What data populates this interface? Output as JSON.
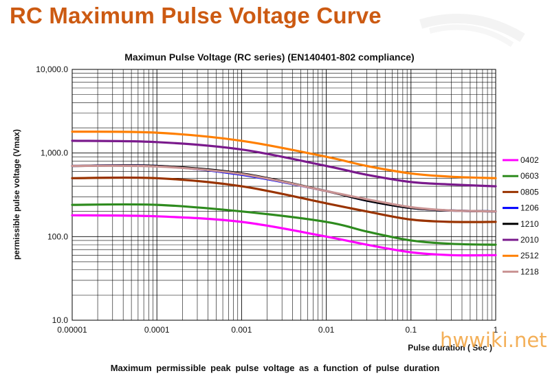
{
  "page": {
    "heading": "RC Maximum Pulse Voltage Curve",
    "caption": "Maximum permissible peak pulse voltage as a function of pulse duration",
    "watermark": "hwwiki.net"
  },
  "colors": {
    "heading": "#cc5a12",
    "grid": "#000000",
    "watermark": "#f2a23c"
  },
  "chart_data": {
    "type": "line",
    "title": "Maximun Pulse Voltage (RC series) (EN140401-802 compliance)",
    "xlabel": "Pulse duration ( Sec )",
    "ylabel": "permissible pulse voltage (Vmax)",
    "x_scale": "log",
    "y_scale": "log",
    "xlim": [
      1e-05,
      1
    ],
    "ylim": [
      10,
      10000
    ],
    "x_ticks": [
      "0.00001",
      "0.0001",
      "0.001",
      "0.01",
      "0.1",
      "1"
    ],
    "y_ticks": [
      "10.0",
      "100.0",
      "1,000.0",
      "10,000.0"
    ],
    "grid": true,
    "legend_position": "right",
    "series": [
      {
        "name": "0402",
        "color": "#ff00ff",
        "x": [
          1e-05,
          0.0001,
          0.001,
          0.01,
          0.03,
          0.1,
          0.3,
          1
        ],
        "y": [
          180,
          175,
          150,
          100,
          80,
          65,
          60,
          60
        ]
      },
      {
        "name": "0603",
        "color": "#2e8b1e",
        "x": [
          1e-05,
          0.0001,
          0.001,
          0.01,
          0.03,
          0.1,
          0.3,
          1
        ],
        "y": [
          240,
          240,
          200,
          150,
          115,
          90,
          82,
          80
        ]
      },
      {
        "name": "0805",
        "color": "#993300",
        "x": [
          1e-05,
          0.0001,
          0.001,
          0.01,
          0.03,
          0.1,
          0.3,
          1
        ],
        "y": [
          500,
          500,
          400,
          250,
          200,
          160,
          150,
          150
        ]
      },
      {
        "name": "1206",
        "color": "#0000ff",
        "x": [
          1e-05,
          0.0001,
          0.001,
          0.01,
          0.03,
          0.1,
          0.3,
          1
        ],
        "y": [
          700,
          700,
          550,
          350,
          270,
          220,
          205,
          200
        ]
      },
      {
        "name": "1210",
        "color": "#000000",
        "x": [
          1e-05,
          0.0001,
          0.001,
          0.01,
          0.03,
          0.1,
          0.3,
          1
        ],
        "y": [
          700,
          700,
          570,
          350,
          270,
          220,
          205,
          200
        ]
      },
      {
        "name": "2010",
        "color": "#7a1a8c",
        "x": [
          1e-05,
          0.0001,
          0.001,
          0.01,
          0.03,
          0.1,
          0.3,
          1
        ],
        "y": [
          1400,
          1350,
          1100,
          700,
          550,
          450,
          420,
          400
        ]
      },
      {
        "name": "2512",
        "color": "#ff7f00",
        "x": [
          1e-05,
          0.0001,
          0.001,
          0.01,
          0.03,
          0.1,
          0.3,
          1
        ],
        "y": [
          1800,
          1750,
          1400,
          900,
          700,
          570,
          520,
          500
        ]
      },
      {
        "name": "1218",
        "color": "#c99393",
        "x": [
          1e-05,
          0.0001,
          0.001,
          0.01,
          0.03,
          0.1,
          0.3,
          1
        ],
        "y": [
          700,
          690,
          560,
          350,
          280,
          225,
          205,
          200
        ]
      }
    ]
  }
}
